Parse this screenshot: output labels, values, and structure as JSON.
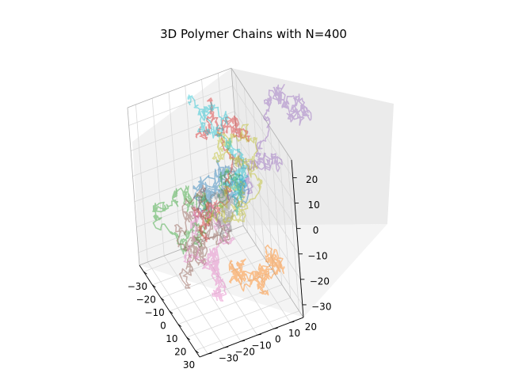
{
  "chart_data": {
    "type": "line",
    "title": "3D Polymer Chains with N=400",
    "xlabel": "",
    "ylabel": "",
    "zlabel": "",
    "xlim": [
      -35,
      35
    ],
    "ylim": [
      -35,
      28
    ],
    "zlim": [
      -35,
      27
    ],
    "x_ticks": [
      -30,
      -20,
      -10,
      0,
      10,
      20,
      30
    ],
    "y_ticks": [
      -30,
      -20,
      -10,
      0,
      10,
      20
    ],
    "z_ticks": [
      -30,
      -20,
      -10,
      0,
      10,
      20
    ],
    "grid": true,
    "projection": "3d",
    "chain_length": 400,
    "num_chains": 10,
    "series_colors": [
      "#1f77b4",
      "#ff7f0e",
      "#2ca02c",
      "#d62728",
      "#9467bd",
      "#8c564b",
      "#e377c2",
      "#7f7f7f",
      "#bcbd22",
      "#17becf"
    ],
    "alpha": 0.45
  }
}
